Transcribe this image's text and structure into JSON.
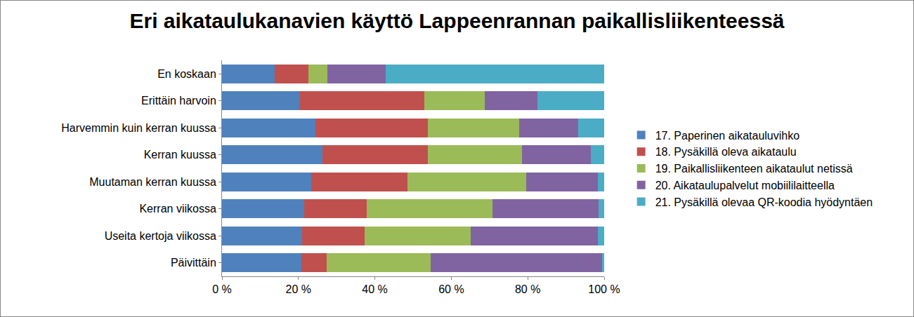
{
  "chart_data": {
    "type": "bar",
    "orientation": "horizontal",
    "stacked": true,
    "title": "Eri aikataulukanavien käyttö Lappeenrannan paikallisliikenteessä",
    "categories": [
      "En koskaan",
      "Erittäin harvoin",
      "Harvemmin kuin kerran kuussa",
      "Kerran kuussa",
      "Muutaman kerran kuussa",
      "Kerran viikossa",
      "Useita kertoja viikossa",
      "Päivittäin"
    ],
    "series": [
      {
        "name": "17. Paperinen aikatauluvihko",
        "color": "#4F81BD",
        "values": [
          13.8,
          20.4,
          24.4,
          26.2,
          23.3,
          21.5,
          20.9,
          20.7
        ]
      },
      {
        "name": "18. Pysäkillä oleva aikataulu",
        "color": "#C0504D",
        "values": [
          8.8,
          32.5,
          29.5,
          27.7,
          25.3,
          16.3,
          16.5,
          6.6
        ]
      },
      {
        "name": "19. Paikallisliikenteen aikataulut netissä",
        "color": "#9BBB59",
        "values": [
          5.0,
          15.8,
          23.9,
          24.6,
          31.0,
          33.0,
          27.7,
          27.3
        ]
      },
      {
        "name": "20. Aikataulupalvelut mobiililaitteella",
        "color": "#8064A2",
        "values": [
          15.2,
          13.9,
          15.4,
          18.0,
          18.7,
          27.7,
          33.2,
          44.8
        ]
      },
      {
        "name": "21. Pysäkillä olevaa QR-koodia hyödyntäen",
        "color": "#4BACC6",
        "values": [
          57.2,
          17.4,
          6.8,
          3.5,
          1.7,
          1.5,
          1.7,
          0.6
        ]
      }
    ],
    "xlim": [
      0,
      100
    ],
    "xticks": [
      {
        "value": 0,
        "label": "0 %"
      },
      {
        "value": 20,
        "label": "20 %"
      },
      {
        "value": 40,
        "label": "40 %"
      },
      {
        "value": 60,
        "label": "60 %"
      },
      {
        "value": 80,
        "label": "80 %"
      },
      {
        "value": 100,
        "label": "100 %"
      }
    ],
    "grid": false,
    "legend": "right"
  }
}
